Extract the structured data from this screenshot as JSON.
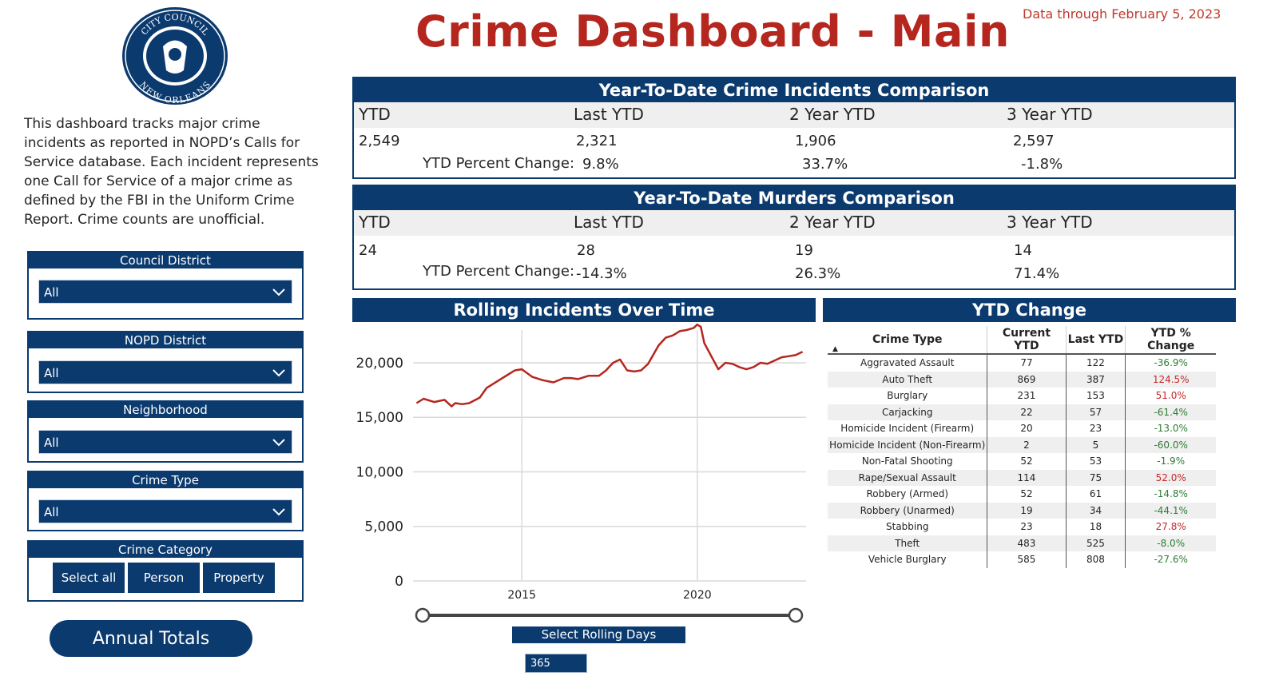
{
  "header": {
    "title": "Crime Dashboard - Main",
    "data_through": "Data through February 5, 2023"
  },
  "seal": {
    "top_text": "CITY COUNCIL",
    "bottom_text": "NEW ORLEANS"
  },
  "description": "This dashboard tracks major crime incidents as reported in NOPD’s Calls for Service database. Each incident represents one Call for Service of a major crime as defined by the FBI in the Uniform Crime Report. Crime counts are unofficial.",
  "slicers": {
    "council_district": {
      "label": "Council District",
      "value": "All"
    },
    "nopd_district": {
      "label": "NOPD District",
      "value": "All"
    },
    "neighborhood": {
      "label": "Neighborhood",
      "value": "All"
    },
    "crime_type": {
      "label": "Crime Type",
      "value": "All"
    },
    "crime_category": {
      "label": "Crime Category",
      "buttons": [
        "Select all",
        "Person",
        "Property"
      ]
    }
  },
  "annual_totals_button": "Annual Totals",
  "incidents_comparison": {
    "title": "Year-To-Date Crime Incidents Comparison",
    "headers": [
      "YTD",
      "Last YTD",
      "2 Year YTD",
      "3 Year YTD"
    ],
    "values": [
      "2,549",
      "2,321",
      "1,906",
      "2,597"
    ],
    "pct_label": "YTD Percent Change:",
    "pct_changes": [
      "9.8%",
      "33.7%",
      "-1.8%"
    ]
  },
  "murders_comparison": {
    "title": "Year-To-Date Murders Comparison",
    "headers": [
      "YTD",
      "Last YTD",
      "2 Year YTD",
      "3 Year YTD"
    ],
    "values": [
      "24",
      "28",
      "19",
      "14"
    ],
    "pct_label": "YTD Percent Change:",
    "pct_changes": [
      "-14.3%",
      "26.3%",
      "71.4%"
    ]
  },
  "rolling_chart": {
    "title": "Rolling Incidents Over Time",
    "select_label": "Select Rolling Days",
    "select_value": "365"
  },
  "chart_data": {
    "type": "line",
    "title": "Rolling Incidents Over Time",
    "xlabel": "",
    "ylabel": "",
    "x_ticks": [
      "2015",
      "2020"
    ],
    "y_ticks": [
      "0",
      "5,000",
      "10,000",
      "15,000",
      "20,000"
    ],
    "ylim": [
      0,
      23000
    ],
    "xlim": [
      2011.9,
      2023.1
    ],
    "grid": true,
    "color": "#b5261e",
    "x": [
      2012.0,
      2012.2,
      2012.5,
      2012.8,
      2013.0,
      2013.1,
      2013.3,
      2013.5,
      2013.8,
      2014.0,
      2014.2,
      2014.4,
      2014.6,
      2014.8,
      2015.0,
      2015.3,
      2015.6,
      2015.9,
      2016.2,
      2016.4,
      2016.6,
      2016.9,
      2017.2,
      2017.4,
      2017.6,
      2017.8,
      2018.0,
      2018.2,
      2018.4,
      2018.6,
      2018.9,
      2019.1,
      2019.3,
      2019.5,
      2019.7,
      2019.9,
      2020.0,
      2020.1,
      2020.2,
      2020.4,
      2020.6,
      2020.8,
      2021.0,
      2021.2,
      2021.4,
      2021.6,
      2021.8,
      2022.0,
      2022.2,
      2022.4,
      2022.6,
      2022.8,
      2023.0
    ],
    "y": [
      16300,
      16700,
      16400,
      16600,
      16000,
      16300,
      16200,
      16300,
      16800,
      17700,
      18100,
      18500,
      18900,
      19300,
      19400,
      18700,
      18400,
      18200,
      18600,
      18600,
      18500,
      18800,
      18800,
      19300,
      20000,
      20300,
      19300,
      19200,
      19300,
      19900,
      21600,
      22300,
      22500,
      22900,
      23000,
      23200,
      23500,
      23300,
      21800,
      20600,
      19400,
      20000,
      19900,
      19600,
      19400,
      19600,
      20000,
      19900,
      20200,
      20500,
      20600,
      20700,
      21000
    ]
  },
  "ytd_change": {
    "title": "YTD Change",
    "columns": [
      "Crime Type",
      "Current YTD",
      "Last YTD",
      "YTD % Change"
    ],
    "sort_indicator": "▲",
    "rows": [
      [
        "Aggravated Assault",
        "77",
        "122",
        "-36.9%"
      ],
      [
        "Auto Theft",
        "869",
        "387",
        "124.5%"
      ],
      [
        "Burglary",
        "231",
        "153",
        "51.0%"
      ],
      [
        "Carjacking",
        "22",
        "57",
        "-61.4%"
      ],
      [
        "Homicide Incident (Firearm)",
        "20",
        "23",
        "-13.0%"
      ],
      [
        "Homicide Incident (Non-Firearm)",
        "2",
        "5",
        "-60.0%"
      ],
      [
        "Non-Fatal Shooting",
        "52",
        "53",
        "-1.9%"
      ],
      [
        "Rape/Sexual Assault",
        "114",
        "75",
        "52.0%"
      ],
      [
        "Robbery (Armed)",
        "52",
        "61",
        "-14.8%"
      ],
      [
        "Robbery (Unarmed)",
        "19",
        "34",
        "-44.1%"
      ],
      [
        "Stabbing",
        "23",
        "18",
        "27.8%"
      ],
      [
        "Theft",
        "483",
        "525",
        "-8.0%"
      ],
      [
        "Vehicle Burglary",
        "585",
        "808",
        "-27.6%"
      ]
    ]
  }
}
